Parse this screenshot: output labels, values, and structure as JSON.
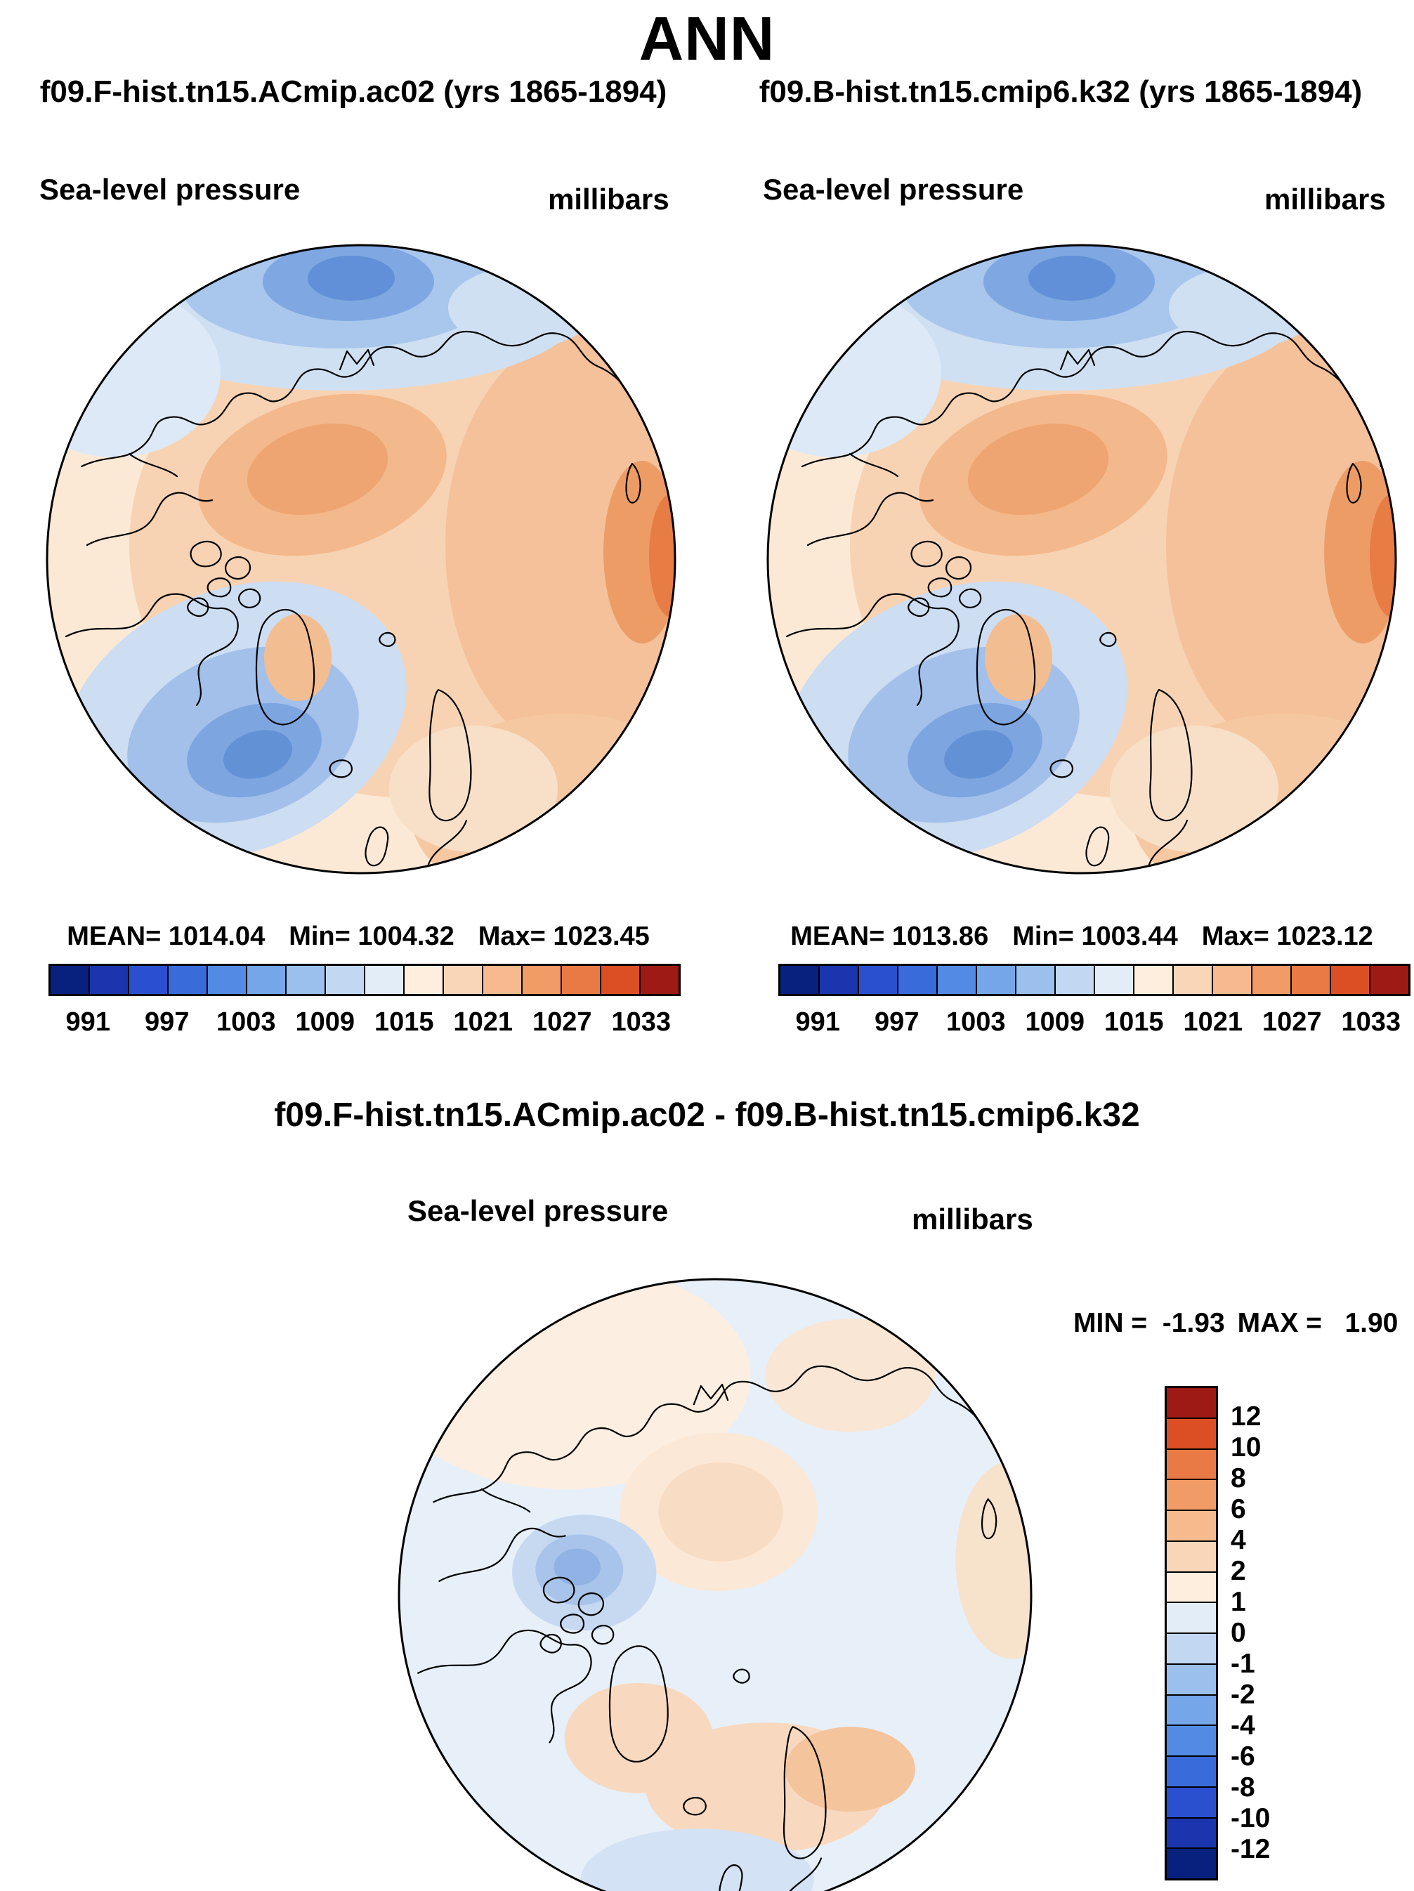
{
  "title": "ANN",
  "cases": {
    "left": "f09.F-hist.tn15.ACmip.ac02 (yrs 1865-1894)",
    "right": "f09.B-hist.tn15.cmip6.k32 (yrs 1865-1894)"
  },
  "panel_left": {
    "field": "Sea-level pressure",
    "units": "millibars",
    "mean_label": "MEAN= 1014.04",
    "min_label": "Min= 1004.32",
    "max_label": "Max= 1023.45"
  },
  "panel_right": {
    "field": "Sea-level pressure",
    "units": "millibars",
    "mean_label": "MEAN= 1013.86",
    "min_label": "Min= 1003.44",
    "max_label": "Max= 1023.12"
  },
  "diff_panel": {
    "title": "f09.F-hist.tn15.ACmip.ac02 - f09.B-hist.tn15.cmip6.k32",
    "field": "Sea-level pressure",
    "units": "millibars",
    "min_label": "MIN =  -1.93",
    "max_label": "MAX =   1.90"
  },
  "slp_colorbar": {
    "tick_labels": [
      "991",
      "997",
      "1003",
      "1009",
      "1015",
      "1021",
      "1027",
      "1033"
    ],
    "colors": [
      "#08207e",
      "#1a35ad",
      "#2b50cf",
      "#3a6bdb",
      "#538ae3",
      "#74a6e9",
      "#9bc0ee",
      "#c2d8f2",
      "#e2edf8",
      "#fdeedd",
      "#f9d6b8",
      "#f6ba8e",
      "#f19c67",
      "#ea7a45",
      "#dc4f24",
      "#9e1a15"
    ]
  },
  "diff_colorbar": {
    "tick_labels": [
      "12",
      "10",
      "8",
      "6",
      "4",
      "2",
      "1",
      "0",
      "-1",
      "-2",
      "-4",
      "-6",
      "-8",
      "-10",
      "-12"
    ],
    "colors": [
      "#9e1a15",
      "#dc4f24",
      "#ea7a45",
      "#f19c67",
      "#f6ba8e",
      "#f9d6b8",
      "#fdeedd",
      "#e2edf8",
      "#c2d8f2",
      "#9bc0ee",
      "#74a6e9",
      "#538ae3",
      "#3a6bdb",
      "#2b50cf",
      "#1a35ad",
      "#08207e"
    ]
  },
  "chart_data": [
    {
      "type": "heatmap",
      "subtype": "filled-contour-map",
      "projection": "north-polar-stereographic",
      "season": "ANN",
      "title": "f09.F-hist.tn15.ACmip.ac02 (yrs 1865-1894)",
      "variable": "Sea-level pressure",
      "units": "millibars",
      "stats": {
        "mean": 1014.04,
        "min": 1004.32,
        "max": 1023.45
      },
      "contour_levels": [
        991,
        994,
        997,
        1000,
        1003,
        1006,
        1009,
        1012,
        1015,
        1018,
        1021,
        1024,
        1027,
        1030,
        1033
      ],
      "colorbar_tick_labels": [
        991,
        997,
        1003,
        1009,
        1015,
        1021,
        1027,
        1033
      ],
      "palette_low_to_high": [
        "#08207e",
        "#1a35ad",
        "#2b50cf",
        "#3a6bdb",
        "#538ae3",
        "#74a6e9",
        "#9bc0ee",
        "#c2d8f2",
        "#e2edf8",
        "#fdeedd",
        "#f9d6b8",
        "#f6ba8e",
        "#f19c67",
        "#ea7a45",
        "#dc4f24",
        "#9e1a15"
      ],
      "legend_position": "bottom-horizontal",
      "visual_features": [
        "low pressure (blue, ~1006-1012 mb) band along the Siberian Arctic coast at top of map",
        "deep low (darker blue, ~1004-1009 mb) in the North Atlantic at lower left (Icelandic low)",
        "high pressure (orange, ~1015-1021 mb) over the central Arctic",
        "strong high (dark orange, ~1021-1024 mb) at the right edge mid-latitudes",
        "black coastline overlay, circular map boundary"
      ]
    },
    {
      "type": "heatmap",
      "subtype": "filled-contour-map",
      "projection": "north-polar-stereographic",
      "season": "ANN",
      "title": "f09.B-hist.tn15.cmip6.k32 (yrs 1865-1894)",
      "variable": "Sea-level pressure",
      "units": "millibars",
      "stats": {
        "mean": 1013.86,
        "min": 1003.44,
        "max": 1023.12
      },
      "contour_levels": [
        991,
        994,
        997,
        1000,
        1003,
        1006,
        1009,
        1012,
        1015,
        1018,
        1021,
        1024,
        1027,
        1030,
        1033
      ],
      "colorbar_tick_labels": [
        991,
        997,
        1003,
        1009,
        1015,
        1021,
        1027,
        1033
      ],
      "palette_low_to_high": [
        "#08207e",
        "#1a35ad",
        "#2b50cf",
        "#3a6bdb",
        "#538ae3",
        "#74a6e9",
        "#9bc0ee",
        "#c2d8f2",
        "#e2edf8",
        "#fdeedd",
        "#f9d6b8",
        "#f6ba8e",
        "#f19c67",
        "#ea7a45",
        "#dc4f24",
        "#9e1a15"
      ],
      "legend_position": "bottom-horizontal",
      "visual_features": [
        "pattern nearly identical to left panel",
        "North Atlantic low slightly deeper (min 1003.44 mb)"
      ]
    },
    {
      "type": "heatmap",
      "subtype": "filled-contour-difference-map",
      "projection": "north-polar-stereographic",
      "season": "ANN",
      "title": "f09.F-hist.tn15.ACmip.ac02 - f09.B-hist.tn15.cmip6.k32",
      "variable": "Sea-level pressure difference",
      "units": "millibars",
      "stats": {
        "min": -1.93,
        "max": 1.9
      },
      "contour_levels": [
        -12,
        -10,
        -8,
        -6,
        -4,
        -2,
        -1,
        0,
        1,
        2,
        4,
        6,
        8,
        10,
        12
      ],
      "colorbar_tick_labels": [
        12,
        10,
        8,
        6,
        4,
        2,
        1,
        0,
        -1,
        -2,
        -4,
        -6,
        -8,
        -10,
        -12
      ],
      "palette_top_to_bottom": [
        "#9e1a15",
        "#dc4f24",
        "#ea7a45",
        "#f19c67",
        "#f6ba8e",
        "#f9d6b8",
        "#fdeedd",
        "#e2edf8",
        "#c2d8f2",
        "#9bc0ee",
        "#74a6e9",
        "#538ae3",
        "#3a6bdb",
        "#2b50cf",
        "#1a35ad",
        "#08207e"
      ],
      "legend_position": "right-vertical",
      "visual_features": [
        "weak negative differences (light blue, 0 to -1 mb) over most of the Arctic Ocean",
        "strongest negative patch (-1 to -2 mb) over the Canadian Arctic Archipelago",
        "weak positive differences (light orange, 0 to +2 mb) over the central Arctic, northern Europe/Russia and lower part of map"
      ]
    }
  ]
}
